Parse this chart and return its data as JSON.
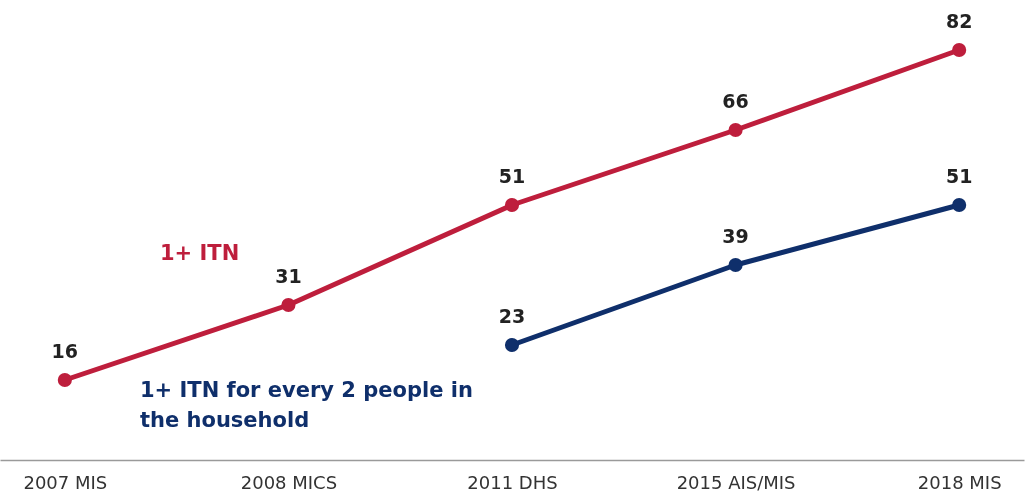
{
  "chart_data": {
    "type": "line",
    "categories": [
      "2007 MIS",
      "2008 MICS",
      "2011 DHS",
      "2015 AIS/MIS",
      "2018 MIS"
    ],
    "series": [
      {
        "name": "1+ ITN",
        "color": "#be1e3c",
        "values": [
          16,
          31,
          51,
          66,
          82
        ]
      },
      {
        "name": "1+ ITN for every 2 people in the household",
        "color": "#0f2f6b",
        "values": [
          null,
          null,
          23,
          39,
          51
        ]
      }
    ],
    "data_labels": true,
    "marker": "circle",
    "line_style": "solid",
    "grid": false,
    "legend": false
  }
}
